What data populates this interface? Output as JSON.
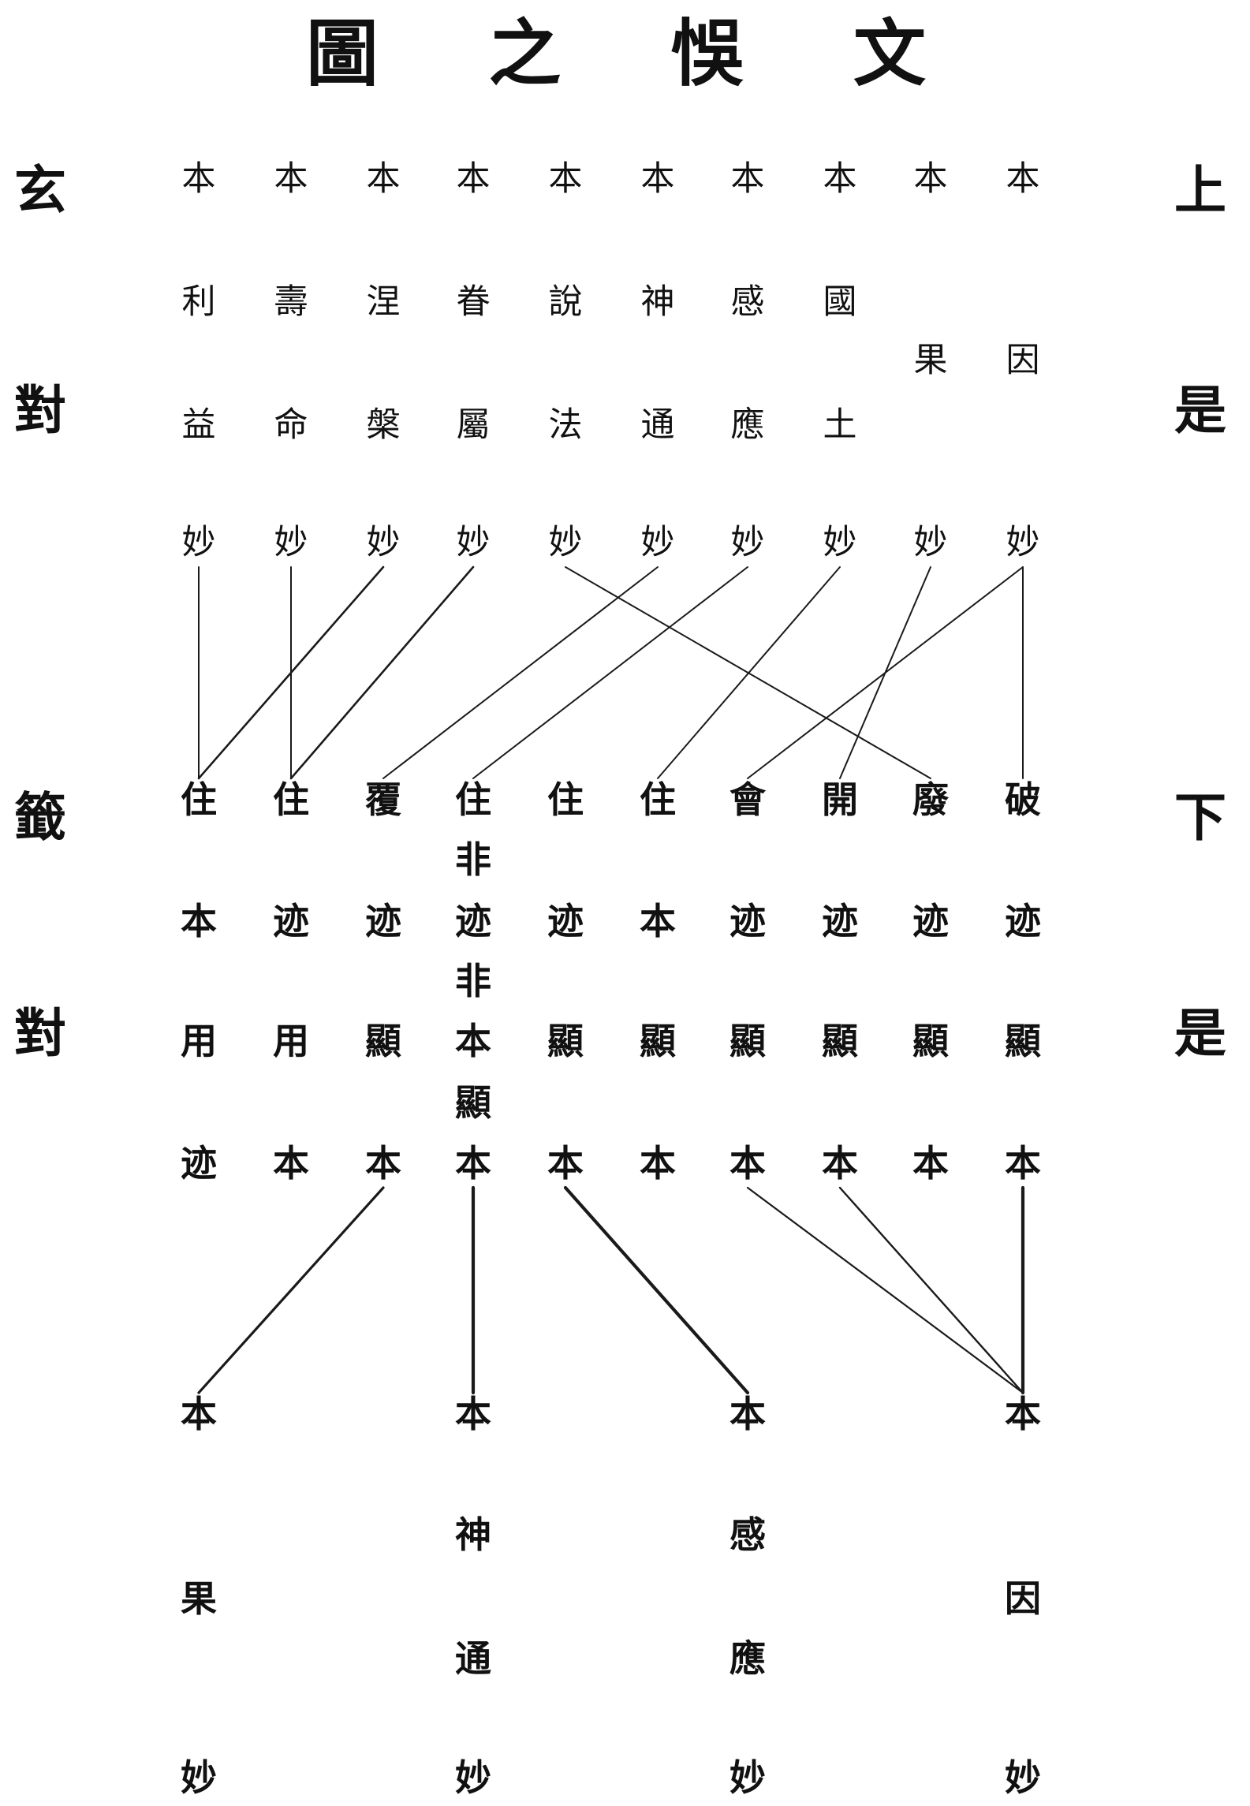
{
  "title": "文悞之圖",
  "margin_left": [
    "玄",
    "對",
    "籤",
    "對"
  ],
  "margin_right": [
    "上",
    "是",
    "下",
    "是"
  ],
  "rows": {
    "r1": [
      "本",
      "本",
      "本",
      "本",
      "本",
      "本",
      "本",
      "本",
      "本",
      "本"
    ],
    "r2": [
      "利",
      "壽",
      "涅",
      "眷",
      "說",
      "神",
      "感",
      "國",
      "",
      ""
    ],
    "r2b": [
      "",
      "",
      "",
      "",
      "",
      "",
      "",
      "",
      "果",
      "因"
    ],
    "r3": [
      "益",
      "命",
      "槃",
      "屬",
      "法",
      "通",
      "應",
      "土",
      "",
      ""
    ],
    "r4": [
      "妙",
      "妙",
      "妙",
      "妙",
      "妙",
      "妙",
      "妙",
      "妙",
      "妙",
      "妙"
    ],
    "r5": [
      "住",
      "住",
      "覆",
      "住",
      "住",
      "住",
      "會",
      "開",
      "廢",
      "破"
    ],
    "r5b": [
      "",
      "",
      "",
      "非",
      "",
      "",
      "",
      "",
      "",
      ""
    ],
    "r6": [
      "本",
      "迹",
      "迹",
      "迹",
      "迹",
      "本",
      "迹",
      "迹",
      "迹",
      "迹"
    ],
    "r6b": [
      "",
      "",
      "",
      "非",
      "",
      "",
      "",
      "",
      "",
      ""
    ],
    "r7": [
      "用",
      "用",
      "顯",
      "本",
      "顯",
      "顯",
      "顯",
      "顯",
      "顯",
      "顯"
    ],
    "r7b": [
      "",
      "",
      "",
      "顯",
      "",
      "",
      "",
      "",
      "",
      ""
    ],
    "r8": [
      "迹",
      "本",
      "本",
      "本",
      "本",
      "本",
      "本",
      "本",
      "本",
      "本"
    ],
    "r9": [
      "本",
      "",
      "",
      "本",
      "",
      "",
      "本",
      "",
      "",
      "本"
    ],
    "r10": [
      "",
      "",
      "",
      "神",
      "",
      "",
      "感",
      "",
      "",
      ""
    ],
    "r10b": [
      "果",
      "",
      "",
      "",
      "",
      "",
      "",
      "",
      "",
      "因"
    ],
    "r11": [
      "",
      "",
      "",
      "通",
      "",
      "",
      "應",
      "",
      "",
      ""
    ],
    "r12": [
      "妙",
      "",
      "",
      "妙",
      "",
      "",
      "妙",
      "",
      "",
      "妙"
    ]
  },
  "upper_links": [
    {
      "from_col": 1,
      "to_col": 1
    },
    {
      "from_col": 2,
      "to_col": 2
    },
    {
      "from_col": 3,
      "to_col": 1
    },
    {
      "from_col": 4,
      "to_col": 2
    },
    {
      "from_col": 5,
      "to_col": 9
    },
    {
      "from_col": 6,
      "to_col": 3
    },
    {
      "from_col": 7,
      "to_col": 4
    },
    {
      "from_col": 8,
      "to_col": 6
    },
    {
      "from_col": 9,
      "to_col": 8
    },
    {
      "from_col": 10,
      "to_col": 7
    },
    {
      "from_col": 10,
      "to_col": 10
    }
  ],
  "lower_links": [
    {
      "from_col": 3,
      "to_col": 1
    },
    {
      "from_col": 4,
      "to_col": 4
    },
    {
      "from_col": 5,
      "to_col": 7
    },
    {
      "from_col": 7,
      "to_col": 10
    },
    {
      "from_col": 8,
      "to_col": 10
    },
    {
      "from_col": 10,
      "to_col": 10
    }
  ]
}
